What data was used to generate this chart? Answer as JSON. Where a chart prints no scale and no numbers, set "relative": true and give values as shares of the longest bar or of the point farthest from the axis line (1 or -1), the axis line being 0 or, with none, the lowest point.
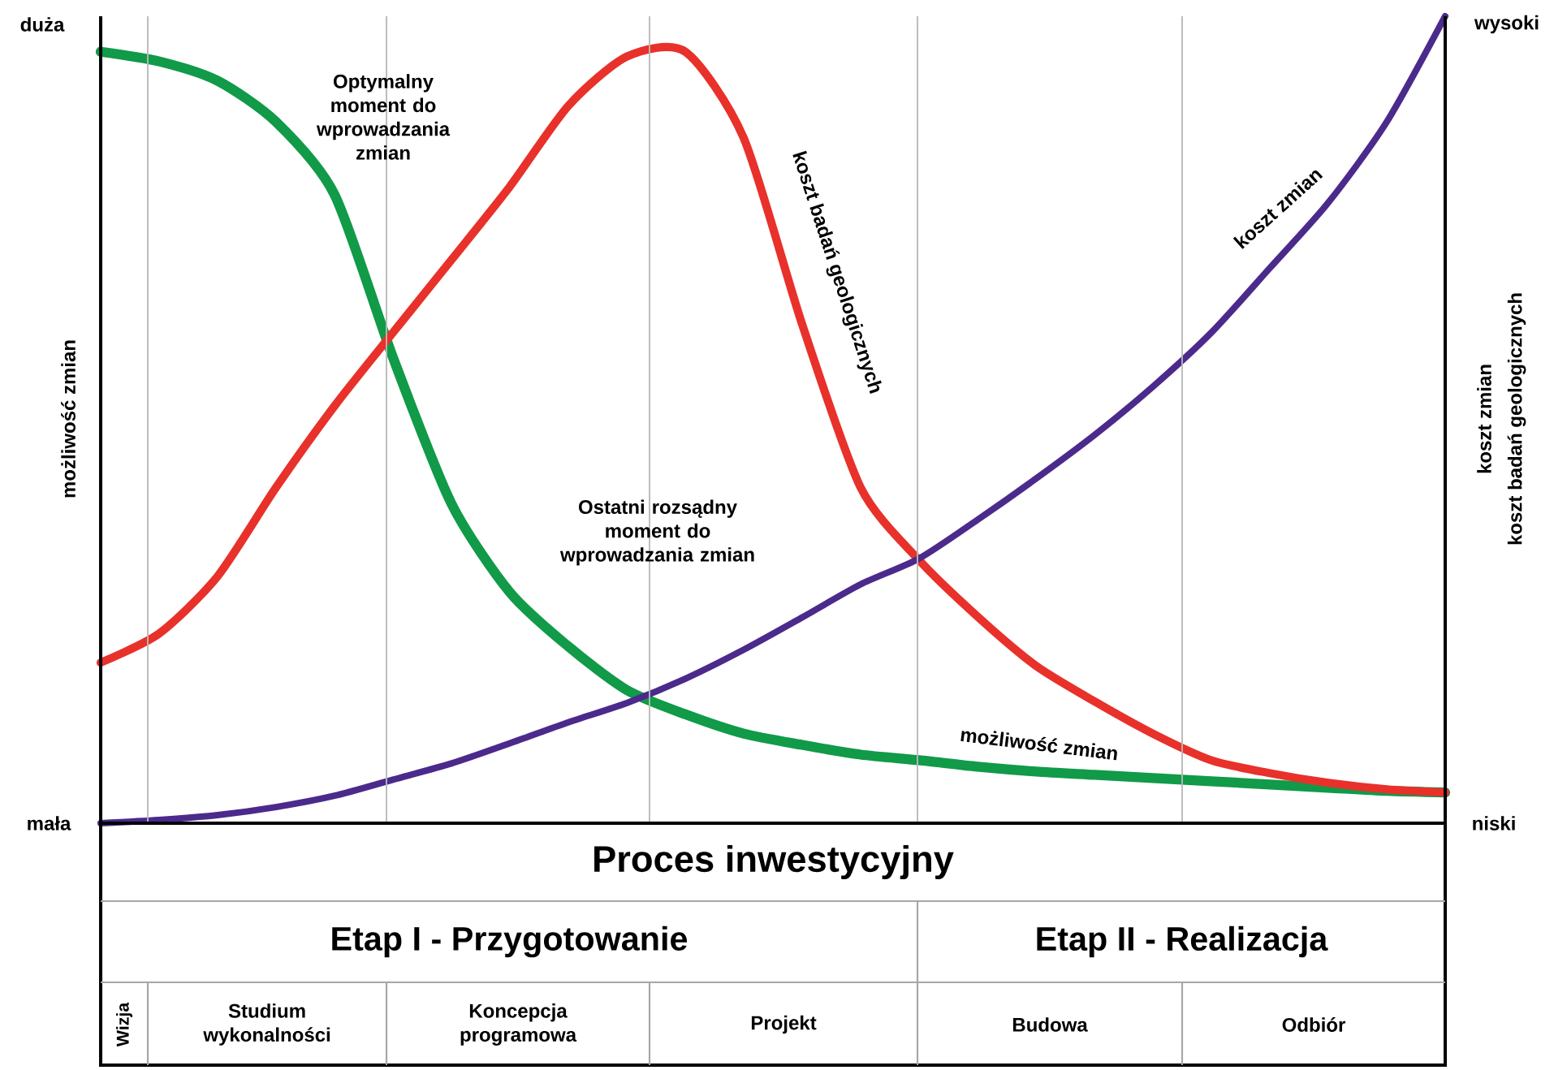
{
  "chart_data": {
    "type": "line",
    "relative": true,
    "categories": [
      null,
      null,
      null,
      null,
      null,
      null,
      null,
      null,
      null,
      null,
      null,
      null,
      null,
      null,
      null,
      null,
      null,
      null,
      null,
      null,
      null,
      null,
      null,
      null
    ],
    "ylabel": "możliwość zmian",
    "y2label": "koszt zmian",
    "series": [
      {
        "name": "możliwość zmian",
        "color": "#119a48",
        "values": [
          0.956,
          0.944,
          0.92,
          0.869,
          0.779,
          0.577,
          0.396,
          0.286,
          0.219,
          0.165,
          0.135,
          0.111,
          0.097,
          0.085,
          0.078,
          0.07,
          0.064,
          0.06,
          0.056,
          0.052,
          0.048,
          0.044,
          0.04,
          0.038
        ]
      },
      {
        "name": "koszt badań geologicznych",
        "color": "#e8312a",
        "values": [
          0.199,
          0.235,
          0.306,
          0.416,
          0.517,
          0.608,
          0.698,
          0.789,
          0.889,
          0.95,
          0.956,
          0.849,
          0.618,
          0.416,
          0.326,
          0.256,
          0.195,
          0.151,
          0.111,
          0.078,
          0.062,
          0.05,
          0.042,
          0.038
        ]
      },
      {
        "name": "koszt zmian",
        "color": "#4b2a8c",
        "values": [
          0,
          0.004,
          0.01,
          0.02,
          0.034,
          0.054,
          0.074,
          0.099,
          0.125,
          0.149,
          0.179,
          0.215,
          0.255,
          0.296,
          0.328,
          0.376,
          0.427,
          0.481,
          0.541,
          0.608,
          0.688,
          0.769,
          0.869,
          1
        ]
      }
    ],
    "annotations": [
      "Optymalny moment do wprowadzania zmian",
      "Ostatni rozsądny moment do wprowadzania zmian",
      "duża",
      "mała",
      "wysoki",
      "niski",
      "Proces inwestycyjny",
      "Etap I - Przygotowanie",
      "Etap II - Realizacja",
      "Wizja",
      "Studium wykonalności",
      "Koncepcja programowa",
      "Projekt",
      "Budowa",
      "Odbiór",
      "koszt badań geologicznych"
    ],
    "line_style": "solid"
  }
}
